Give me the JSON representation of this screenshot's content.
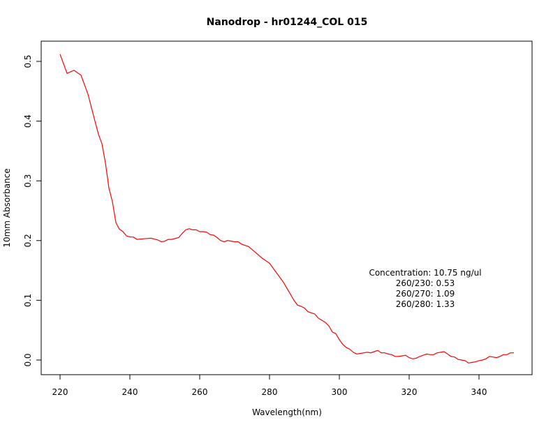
{
  "chart_data": {
    "type": "line",
    "title": "Nanodrop - hr01244_COL 015",
    "xlabel": "Wavelength(nm)",
    "ylabel": "10mm Absorbance",
    "xlim": [
      220,
      350
    ],
    "ylim": [
      0.0,
      0.5
    ],
    "x_ticks": [
      220,
      240,
      260,
      280,
      300,
      320,
      340
    ],
    "x_tick_labels": [
      "220",
      "240",
      "260",
      "280",
      "300",
      "320",
      "340"
    ],
    "y_ticks": [
      0.0,
      0.1,
      0.2,
      0.3,
      0.4,
      0.5
    ],
    "y_tick_labels": [
      "0.0",
      "0.1",
      "0.2",
      "0.3",
      "0.4",
      "0.5"
    ],
    "grid": false,
    "series": [
      {
        "color": "#ff0000",
        "x": [
          220,
          222,
          224,
          226,
          228,
          230,
          231,
          232,
          233,
          234,
          235,
          236,
          237,
          238,
          239,
          240,
          241,
          242,
          244,
          246,
          248,
          249,
          250,
          251,
          252,
          254,
          255,
          256,
          257,
          258,
          259,
          260,
          261,
          262,
          263,
          264,
          265,
          266,
          267,
          268,
          270,
          271,
          272,
          274,
          276,
          278,
          280,
          282,
          284,
          286,
          287,
          288,
          289,
          290,
          291,
          292,
          293,
          294,
          296,
          297,
          298,
          299,
          300,
          301,
          302,
          303,
          304,
          305,
          306,
          307,
          308,
          309,
          310,
          311,
          312,
          313,
          314,
          315,
          316,
          317,
          318,
          319,
          320,
          321,
          322,
          323,
          324,
          325,
          326,
          327,
          328,
          329,
          330,
          331,
          332,
          333,
          334,
          335,
          336,
          337,
          338,
          339,
          340,
          341,
          342,
          343,
          344,
          345,
          346,
          347,
          348,
          349,
          350
        ],
        "y": [
          0.512,
          0.48,
          0.485,
          0.477,
          0.445,
          0.4,
          0.378,
          0.362,
          0.33,
          0.288,
          0.265,
          0.23,
          0.219,
          0.215,
          0.208,
          0.206,
          0.206,
          0.202,
          0.203,
          0.204,
          0.201,
          0.198,
          0.199,
          0.202,
          0.202,
          0.205,
          0.212,
          0.218,
          0.22,
          0.218,
          0.218,
          0.215,
          0.215,
          0.214,
          0.21,
          0.209,
          0.205,
          0.2,
          0.198,
          0.2,
          0.198,
          0.198,
          0.194,
          0.19,
          0.18,
          0.17,
          0.162,
          0.146,
          0.13,
          0.11,
          0.1,
          0.092,
          0.09,
          0.087,
          0.081,
          0.079,
          0.077,
          0.07,
          0.063,
          0.057,
          0.047,
          0.044,
          0.034,
          0.026,
          0.021,
          0.018,
          0.013,
          0.01,
          0.011,
          0.012,
          0.013,
          0.012,
          0.014,
          0.016,
          0.012,
          0.012,
          0.01,
          0.009,
          0.006,
          0.006,
          0.007,
          0.008,
          0.004,
          0.002,
          0.003,
          0.006,
          0.008,
          0.01,
          0.009,
          0.009,
          0.012,
          0.013,
          0.014,
          0.01,
          0.006,
          0.005,
          0.001,
          0.0,
          -0.001,
          -0.005,
          -0.004,
          -0.003,
          -0.001,
          0.0,
          0.002,
          0.006,
          0.005,
          0.004,
          0.006,
          0.009,
          0.009,
          0.012,
          0.012
        ]
      }
    ],
    "annotations": [
      "Concentration: 10.75 ng/ul",
      "260/230: 0.53",
      "260/270: 1.09",
      "260/280: 1.33"
    ]
  }
}
